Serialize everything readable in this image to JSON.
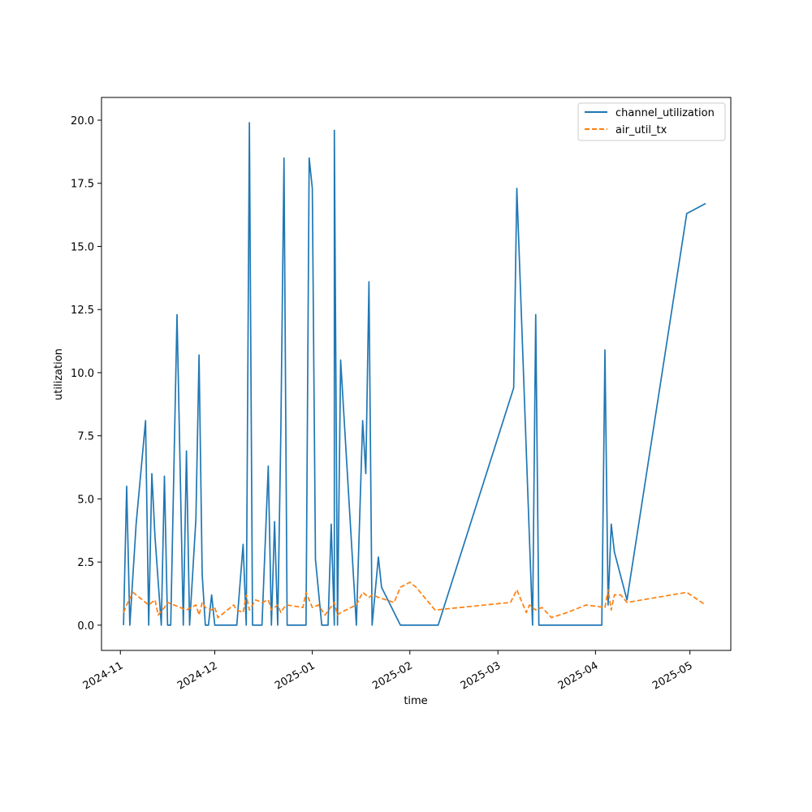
{
  "chart_data": {
    "type": "line",
    "title": "",
    "xlabel": "time",
    "ylabel": "utilization",
    "x_axis": "date",
    "xlim": [
      "2024-10-26",
      "2025-05-14"
    ],
    "ylim": [
      -1.0,
      20.9
    ],
    "x_ticks": [
      "2024-11-01",
      "2024-12-01",
      "2025-01-01",
      "2025-02-01",
      "2025-03-01",
      "2025-04-01",
      "2025-05-01"
    ],
    "x_tick_labels": [
      "2024-11",
      "2024-12",
      "2025-01",
      "2025-02",
      "2025-03",
      "2025-04",
      "2025-05"
    ],
    "y_ticks": [
      0.0,
      2.5,
      5.0,
      7.5,
      10.0,
      12.5,
      15.0,
      17.5,
      20.0
    ],
    "y_tick_labels": [
      "0.0",
      "2.5",
      "5.0",
      "7.5",
      "10.0",
      "12.5",
      "15.0",
      "17.5",
      "20.0"
    ],
    "grid": false,
    "legend_position": "top-right",
    "series": [
      {
        "name": "channel_utilization",
        "color": "#1f77b4",
        "style": "solid",
        "x": [
          "2024-11-02",
          "2024-11-03",
          "2024-11-04",
          "2024-11-06",
          "2024-11-09",
          "2024-11-10",
          "2024-11-11",
          "2024-11-12",
          "2024-11-14",
          "2024-11-15",
          "2024-11-16",
          "2024-11-17",
          "2024-11-19",
          "2024-11-21",
          "2024-11-22",
          "2024-11-23",
          "2024-11-25",
          "2024-11-26",
          "2024-11-27",
          "2024-11-28",
          "2024-11-29",
          "2024-11-30",
          "2024-12-01",
          "2024-12-08",
          "2024-12-10",
          "2024-12-11",
          "2024-12-12",
          "2024-12-13",
          "2024-12-14",
          "2024-12-16",
          "2024-12-18",
          "2024-12-19",
          "2024-12-20",
          "2024-12-21",
          "2024-12-22",
          "2024-12-23",
          "2024-12-24",
          "2024-12-30",
          "2024-12-31",
          "2025-01-01",
          "2025-01-02",
          "2025-01-04",
          "2025-01-06",
          "2025-01-07",
          "2025-01-08",
          "2025-01-08",
          "2025-01-09",
          "2025-01-10",
          "2025-01-15",
          "2025-01-17",
          "2025-01-18",
          "2025-01-19",
          "2025-01-20",
          "2025-01-22",
          "2025-01-23",
          "2025-01-29",
          "2025-02-10",
          "2025-03-06",
          "2025-03-07",
          "2025-03-12",
          "2025-03-13",
          "2025-03-14",
          "2025-04-03",
          "2025-04-04",
          "2025-04-05",
          "2025-04-06",
          "2025-04-07",
          "2025-04-11",
          "2025-04-30",
          "2025-05-06"
        ],
        "values": [
          0.0,
          5.5,
          0.0,
          4.0,
          8.1,
          0.0,
          6.0,
          3.5,
          0.0,
          5.9,
          0.0,
          0.0,
          12.3,
          0.0,
          6.9,
          0.0,
          4.2,
          10.7,
          2.0,
          0.0,
          0.0,
          1.2,
          0.0,
          0.0,
          3.2,
          0.0,
          19.9,
          0.0,
          0.0,
          0.0,
          6.3,
          0.0,
          4.1,
          0.0,
          7.7,
          18.5,
          0.0,
          0.0,
          18.5,
          17.3,
          2.6,
          0.0,
          0.0,
          4.0,
          0.0,
          19.6,
          0.0,
          10.5,
          0.0,
          8.1,
          6.0,
          13.6,
          0.0,
          2.7,
          1.5,
          0.0,
          0.0,
          9.4,
          17.3,
          0.0,
          12.3,
          0.0,
          0.0,
          10.9,
          0.8,
          4.0,
          2.9,
          1.0,
          16.3,
          16.7
        ]
      },
      {
        "name": "air_util_tx",
        "color": "#ff7f0e",
        "style": "dashed",
        "x": [
          "2024-11-02",
          "2024-11-03",
          "2024-11-05",
          "2024-11-09",
          "2024-11-10",
          "2024-11-12",
          "2024-11-13",
          "2024-11-15",
          "2024-11-16",
          "2024-11-18",
          "2024-11-22",
          "2024-11-25",
          "2024-11-26",
          "2024-11-27",
          "2024-11-28",
          "2024-11-30",
          "2024-12-01",
          "2024-12-02",
          "2024-12-07",
          "2024-12-08",
          "2024-12-10",
          "2024-12-11",
          "2024-12-12",
          "2024-12-14",
          "2024-12-16",
          "2024-12-18",
          "2024-12-19",
          "2024-12-21",
          "2024-12-22",
          "2024-12-23",
          "2024-12-24",
          "2024-12-29",
          "2024-12-30",
          "2025-01-01",
          "2025-01-03",
          "2025-01-05",
          "2025-01-08",
          "2025-01-09",
          "2025-01-10",
          "2025-01-15",
          "2025-01-17",
          "2025-01-19",
          "2025-01-20",
          "2025-01-22",
          "2025-01-27",
          "2025-01-29",
          "2025-02-01",
          "2025-02-03",
          "2025-02-09",
          "2025-03-05",
          "2025-03-07",
          "2025-03-10",
          "2025-03-11",
          "2025-03-13",
          "2025-03-15",
          "2025-03-18",
          "2025-03-23",
          "2025-03-29",
          "2025-04-04",
          "2025-04-05",
          "2025-04-06",
          "2025-04-07",
          "2025-04-09",
          "2025-04-11",
          "2025-04-30",
          "2025-05-06"
        ],
        "values": [
          0.5,
          0.8,
          1.3,
          0.9,
          0.8,
          1.0,
          0.4,
          0.7,
          0.9,
          0.8,
          0.6,
          0.8,
          0.4,
          0.9,
          0.7,
          0.6,
          0.7,
          0.3,
          0.8,
          0.6,
          0.5,
          1.2,
          0.6,
          1.0,
          0.9,
          1.0,
          0.6,
          0.8,
          0.5,
          0.7,
          0.8,
          0.7,
          1.3,
          0.7,
          0.8,
          0.4,
          0.9,
          0.4,
          0.5,
          0.8,
          1.3,
          1.1,
          1.2,
          1.1,
          0.9,
          1.5,
          1.7,
          1.5,
          0.6,
          0.9,
          1.4,
          0.5,
          0.8,
          0.6,
          0.7,
          0.3,
          0.5,
          0.8,
          0.7,
          1.4,
          0.6,
          1.2,
          1.2,
          0.9,
          1.3,
          0.8
        ]
      }
    ]
  }
}
